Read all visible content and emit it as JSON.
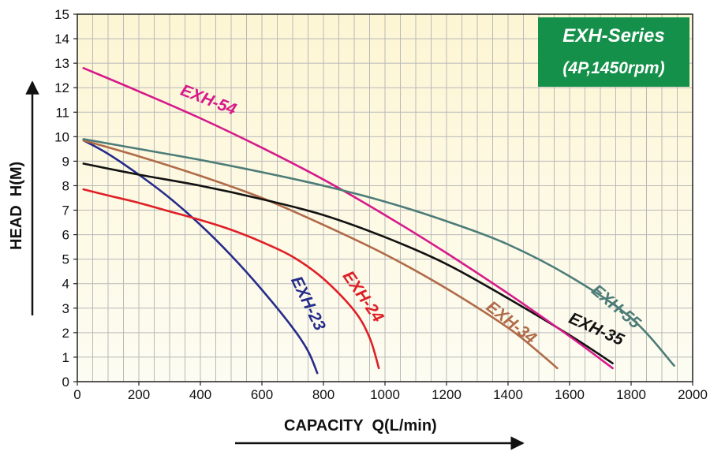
{
  "chart_data": {
    "type": "line",
    "title": "EXH-Series",
    "subtitle": "(4P,1450rpm)",
    "title_box_color": "#14904a",
    "xlabel": "CAPACITY  Q(L/min)",
    "ylabel": "HEAD  H(M)",
    "xlim": [
      0,
      2000
    ],
    "ylim": [
      0,
      15
    ],
    "xticks": [
      0,
      200,
      400,
      600,
      800,
      1000,
      1200,
      1400,
      1600,
      1800,
      2000
    ],
    "yticks": [
      0,
      1,
      2,
      3,
      4,
      5,
      6,
      7,
      8,
      9,
      10,
      11,
      12,
      13,
      14,
      15
    ],
    "grid": true,
    "background_gradient": [
      "#fdf6d4",
      "#fdfcf2"
    ],
    "series": [
      {
        "name": "EXH-23",
        "color": "#262c8a",
        "x": [
          20,
          100,
          200,
          300,
          400,
          500,
          600,
          700,
          750,
          780
        ],
        "y": [
          9.85,
          9.3,
          8.45,
          7.5,
          6.4,
          5.15,
          3.75,
          2.2,
          1.25,
          0.35
        ]
      },
      {
        "name": "EXH-24",
        "color": "#df1f26",
        "x": [
          20,
          100,
          200,
          300,
          400,
          500,
          600,
          700,
          800,
          900,
          950,
          980
        ],
        "y": [
          7.85,
          7.6,
          7.3,
          6.95,
          6.6,
          6.2,
          5.7,
          5.1,
          4.2,
          2.9,
          1.8,
          0.55
        ]
      },
      {
        "name": "EXH-34",
        "color": "#b06b48",
        "x": [
          20,
          200,
          400,
          600,
          800,
          1000,
          1200,
          1400,
          1500,
          1560
        ],
        "y": [
          9.85,
          9.2,
          8.4,
          7.5,
          6.4,
          5.2,
          3.8,
          2.2,
          1.2,
          0.55
        ]
      },
      {
        "name": "EXH-35",
        "color": "#121212",
        "x": [
          20,
          200,
          400,
          600,
          800,
          1000,
          1200,
          1400,
          1600,
          1740
        ],
        "y": [
          8.9,
          8.45,
          8.0,
          7.45,
          6.8,
          5.9,
          4.8,
          3.4,
          1.9,
          0.75
        ]
      },
      {
        "name": "EXH-54",
        "color": "#d61a8a",
        "x": [
          20,
          200,
          400,
          600,
          800,
          1000,
          1200,
          1400,
          1600,
          1740
        ],
        "y": [
          12.8,
          11.85,
          10.75,
          9.55,
          8.25,
          6.8,
          5.25,
          3.6,
          1.85,
          0.55
        ]
      },
      {
        "name": "EXH-55",
        "color": "#4d7c78",
        "x": [
          20,
          200,
          400,
          600,
          800,
          1000,
          1200,
          1400,
          1600,
          1800,
          1940
        ],
        "y": [
          9.9,
          9.5,
          9.05,
          8.55,
          8.0,
          7.35,
          6.55,
          5.6,
          4.3,
          2.6,
          0.65
        ]
      }
    ]
  }
}
